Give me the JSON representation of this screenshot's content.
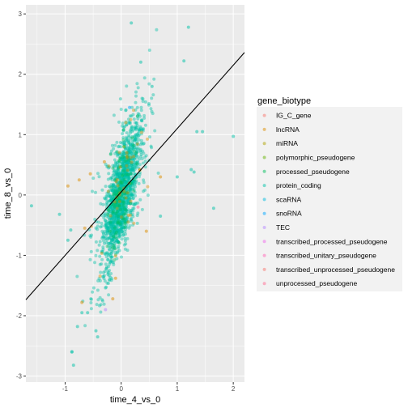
{
  "chart_data": {
    "type": "scatter",
    "title": "",
    "xlabel": "time_4_vs_0",
    "ylabel": "time_8_vs_0",
    "xlim": [
      -1.7,
      2.2
    ],
    "ylim": [
      -3.1,
      3.15
    ],
    "xticks": [
      -1,
      0,
      1,
      2
    ],
    "yticks": [
      -3,
      -2,
      -1,
      0,
      1,
      2,
      3
    ],
    "grid": true,
    "legend_placement": "right",
    "legend_title": "gene_biotype",
    "reference_line": {
      "intercept": 0.05,
      "slope": 1.05
    },
    "series": [
      {
        "name": "IG_C_gene",
        "color": "#F8766D"
      },
      {
        "name": "lncRNA",
        "color": "#DB8E00"
      },
      {
        "name": "miRNA",
        "color": "#AEA200"
      },
      {
        "name": "polymorphic_pseudogene",
        "color": "#64B200"
      },
      {
        "name": "processed_pseudogene",
        "color": "#00BD5C"
      },
      {
        "name": "protein_coding",
        "color": "#00C1A7"
      },
      {
        "name": "scaRNA",
        "color": "#00BADE"
      },
      {
        "name": "snoRNA",
        "color": "#00A6FF"
      },
      {
        "name": "TEC",
        "color": "#B385FF"
      },
      {
        "name": "transcribed_processed_pseudogene",
        "color": "#EF67EB"
      },
      {
        "name": "transcribed_unitary_pseudogene",
        "color": "#FF63B6"
      },
      {
        "name": "transcribed_unprocessed_pseudogene",
        "color": "#F8766D"
      },
      {
        "name": "unprocessed_pseudogene",
        "color": "#FF6C91"
      }
    ],
    "highlight_points": [
      {
        "series": "protein_coding",
        "x": 0.18,
        "y": 2.85
      },
      {
        "series": "protein_coding",
        "x": 1.2,
        "y": 2.78
      },
      {
        "series": "protein_coding",
        "x": 1.12,
        "y": 2.22
      },
      {
        "series": "protein_coding",
        "x": 0.35,
        "y": 2.2
      },
      {
        "series": "protein_coding",
        "x": 0.55,
        "y": 1.8
      },
      {
        "series": "protein_coding",
        "x": 1.35,
        "y": 1.05
      },
      {
        "series": "protein_coding",
        "x": 1.45,
        "y": 1.05
      },
      {
        "series": "protein_coding",
        "x": 2.0,
        "y": 0.97
      },
      {
        "series": "protein_coding",
        "x": 1.65,
        "y": -0.22
      },
      {
        "series": "protein_coding",
        "x": -1.6,
        "y": -0.18
      },
      {
        "series": "protein_coding",
        "x": -1.1,
        "y": -0.32
      },
      {
        "series": "protein_coding",
        "x": -0.9,
        "y": -0.58
      },
      {
        "series": "protein_coding",
        "x": -0.95,
        "y": -0.75
      },
      {
        "series": "protein_coding",
        "x": -0.88,
        "y": -2.6
      },
      {
        "series": "protein_coding",
        "x": -0.85,
        "y": -2.82
      },
      {
        "series": "protein_coding",
        "x": -0.78,
        "y": -2.18
      },
      {
        "series": "protein_coding",
        "x": -0.45,
        "y": -2.25
      },
      {
        "series": "protein_coding",
        "x": -0.42,
        "y": -2.35
      },
      {
        "series": "protein_coding",
        "x": -0.7,
        "y": -1.95
      },
      {
        "series": "protein_coding",
        "x": -0.6,
        "y": -1.95
      },
      {
        "series": "protein_coding",
        "x": 1.0,
        "y": 0.3
      },
      {
        "series": "protein_coding",
        "x": 1.3,
        "y": 0.38
      },
      {
        "series": "protein_coding",
        "x": 1.25,
        "y": 0.42
      },
      {
        "series": "protein_coding",
        "x": 0.7,
        "y": -0.35
      },
      {
        "series": "lncRNA",
        "x": -0.95,
        "y": 0.15
      },
      {
        "series": "lncRNA",
        "x": -0.75,
        "y": 0.25
      },
      {
        "series": "lncRNA",
        "x": -0.55,
        "y": 0.35
      },
      {
        "series": "lncRNA",
        "x": 0.7,
        "y": 0.3
      },
      {
        "series": "lncRNA",
        "x": -0.1,
        "y": -1.38
      },
      {
        "series": "lncRNA",
        "x": -0.15,
        "y": -1.72
      },
      {
        "series": "lncRNA",
        "x": -0.7,
        "y": -1.78
      },
      {
        "series": "lncRNA",
        "x": 0.1,
        "y": 0.7
      },
      {
        "series": "lncRNA",
        "x": -0.3,
        "y": 0.55
      },
      {
        "series": "lncRNA",
        "x": 0.45,
        "y": -0.6
      },
      {
        "series": "lncRNA",
        "x": -0.65,
        "y": -0.55
      },
      {
        "series": "TEC",
        "x": -0.28,
        "y": -1.9
      },
      {
        "series": "snoRNA",
        "x": 0.15,
        "y": 1.45
      },
      {
        "series": "polymorphic_pseudogene",
        "x": 0.05,
        "y": 0.8
      },
      {
        "series": "processed_pseudogene",
        "x": -0.2,
        "y": -0.6
      },
      {
        "series": "unprocessed_pseudogene",
        "x": 0.3,
        "y": -0.2
      }
    ]
  }
}
